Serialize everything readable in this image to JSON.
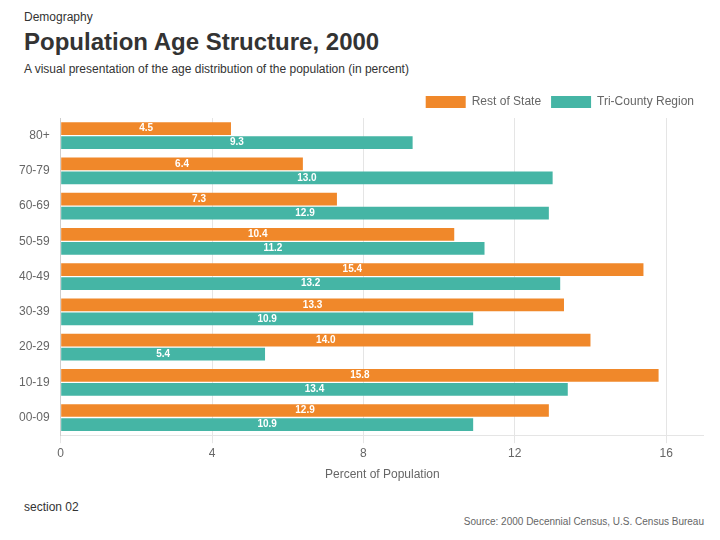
{
  "chart_data": {
    "type": "bar",
    "orientation": "horizontal",
    "title": "Population Age Structure, 2000",
    "subtitle": "A visual presentation of the age distribution of the population (in percent)",
    "annotations": [
      "Demography",
      "section 02",
      "Source: 2000 Decennial Census, U.S. Census Bureau"
    ],
    "categories": [
      "80+",
      "70-79",
      "60-69",
      "50-59",
      "40-49",
      "30-39",
      "20-29",
      "10-19",
      "00-09"
    ],
    "series": [
      {
        "name": "Rest of State",
        "color": "#F0882A",
        "values": [
          4.5,
          6.4,
          7.3,
          10.4,
          15.4,
          13.3,
          14.0,
          15.8,
          12.9
        ],
        "value_labels": [
          "4.5",
          "6.4",
          "7.3",
          "10.4",
          "15.4",
          "13.3",
          "14.0",
          "15.8",
          "12.9"
        ]
      },
      {
        "name": "Tri-County Region",
        "color": "#45B5A5",
        "values": [
          9.3,
          13.0,
          12.9,
          11.2,
          13.2,
          10.9,
          5.4,
          13.4,
          10.9
        ],
        "value_labels": [
          "9.3",
          "13.0",
          "12.9",
          "11.2",
          "13.2",
          "10.9",
          "5.4",
          "13.4",
          "10.9"
        ]
      }
    ],
    "xlabel": "Percent of Population",
    "xlim": [
      0,
      17
    ],
    "xticks": [
      0,
      4,
      8,
      12,
      16
    ],
    "grid": true,
    "legend": "upper right",
    "data_labels": true
  }
}
